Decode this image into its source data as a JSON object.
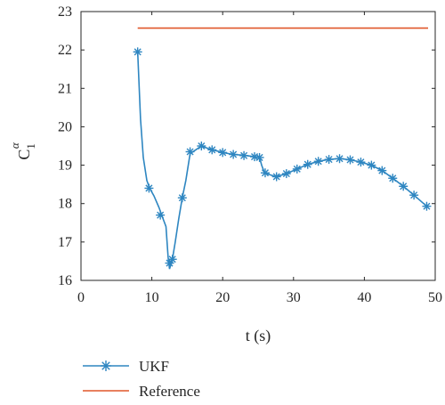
{
  "chart_data": {
    "type": "line",
    "xlabel": "t (s)",
    "ylabel": {
      "base": "C",
      "sub": "1",
      "sup": "α"
    },
    "xlim": [
      0,
      50
    ],
    "ylim": [
      16,
      23
    ],
    "xticks": [
      0,
      10,
      20,
      30,
      40,
      50
    ],
    "yticks": [
      16,
      17,
      18,
      19,
      20,
      21,
      22,
      23
    ],
    "grid": false,
    "legend_position": "bottom-left outside plot",
    "series": [
      {
        "name": "UKF",
        "color": "#2e86c1",
        "marker": "asterisk",
        "line": [
          [
            8,
            21.95
          ],
          [
            8.4,
            20.2
          ],
          [
            8.8,
            19.2
          ],
          [
            9.3,
            18.6
          ],
          [
            9.7,
            18.4
          ],
          [
            10.3,
            18.2
          ],
          [
            11,
            17.9
          ],
          [
            11.6,
            17.6
          ],
          [
            12.0,
            17.4
          ],
          [
            12.3,
            16.6
          ],
          [
            12.5,
            16.3
          ],
          [
            12.9,
            16.55
          ],
          [
            13.3,
            17.0
          ],
          [
            13.8,
            17.6
          ],
          [
            14.3,
            18.15
          ],
          [
            14.8,
            18.6
          ],
          [
            15.4,
            19.3
          ],
          [
            16.2,
            19.4
          ],
          [
            17.0,
            19.5
          ],
          [
            18.0,
            19.43
          ],
          [
            19.0,
            19.38
          ],
          [
            20.0,
            19.33
          ],
          [
            21.5,
            19.28
          ],
          [
            23.0,
            19.26
          ],
          [
            24.5,
            19.22
          ],
          [
            25.2,
            19.2
          ],
          [
            25.5,
            19.0
          ],
          [
            25.9,
            18.8
          ],
          [
            27.5,
            18.7
          ],
          [
            29.0,
            18.78
          ],
          [
            30.5,
            18.9
          ],
          [
            32.0,
            19.02
          ],
          [
            33.5,
            19.1
          ],
          [
            35.0,
            19.15
          ],
          [
            36.5,
            19.17
          ],
          [
            38.0,
            19.14
          ],
          [
            39.5,
            19.08
          ],
          [
            41.0,
            19.0
          ],
          [
            42.5,
            18.86
          ],
          [
            44.0,
            18.66
          ],
          [
            45.5,
            18.45
          ],
          [
            47.0,
            18.22
          ],
          [
            48.8,
            17.93
          ]
        ],
        "markers": [
          [
            8,
            21.95
          ],
          [
            9.6,
            18.4
          ],
          [
            11.2,
            17.7
          ],
          [
            12.5,
            16.45
          ],
          [
            12.9,
            16.55
          ],
          [
            14.3,
            18.15
          ],
          [
            15.4,
            19.35
          ],
          [
            17.0,
            19.5
          ],
          [
            18.5,
            19.4
          ],
          [
            20.0,
            19.33
          ],
          [
            21.5,
            19.28
          ],
          [
            23.0,
            19.25
          ],
          [
            24.5,
            19.22
          ],
          [
            25.2,
            19.2
          ],
          [
            26.0,
            18.8
          ],
          [
            27.6,
            18.7
          ],
          [
            29.0,
            18.78
          ],
          [
            30.5,
            18.9
          ],
          [
            32.0,
            19.02
          ],
          [
            33.5,
            19.1
          ],
          [
            35.0,
            19.15
          ],
          [
            36.5,
            19.17
          ],
          [
            38.0,
            19.14
          ],
          [
            39.5,
            19.08
          ],
          [
            41.0,
            19.0
          ],
          [
            42.5,
            18.86
          ],
          [
            44.0,
            18.66
          ],
          [
            45.5,
            18.45
          ],
          [
            47.0,
            18.22
          ],
          [
            48.8,
            17.93
          ]
        ]
      },
      {
        "name": "Reference",
        "color": "#e0572a",
        "marker": "none",
        "line": [
          [
            8,
            22.57
          ],
          [
            49,
            22.57
          ]
        ]
      }
    ]
  }
}
